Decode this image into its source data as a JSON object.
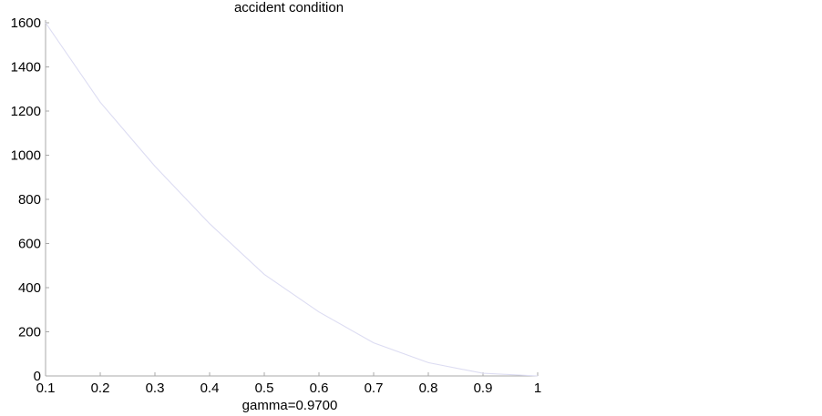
{
  "chart_data": {
    "type": "line",
    "title": "accident condition",
    "xlabel": "gamma=0.9700",
    "ylabel": "",
    "xlim": [
      0.1,
      1
    ],
    "ylim": [
      0,
      1600
    ],
    "xticks": [
      "0.1",
      "0.2",
      "0.3",
      "0.4",
      "0.5",
      "0.6",
      "0.7",
      "0.8",
      "0.9",
      "1"
    ],
    "yticks": [
      "0",
      "200",
      "400",
      "600",
      "800",
      "1000",
      "1200",
      "1400",
      "1600"
    ],
    "grid": false,
    "series": [
      {
        "color": "#dcdcf2",
        "x": [
          0.1,
          0.2,
          0.3,
          0.4,
          0.5,
          0.6,
          0.7,
          0.8,
          0.9,
          1.0
        ],
        "y": [
          1600,
          1240,
          950,
          690,
          460,
          290,
          150,
          60,
          12,
          0
        ]
      }
    ]
  }
}
